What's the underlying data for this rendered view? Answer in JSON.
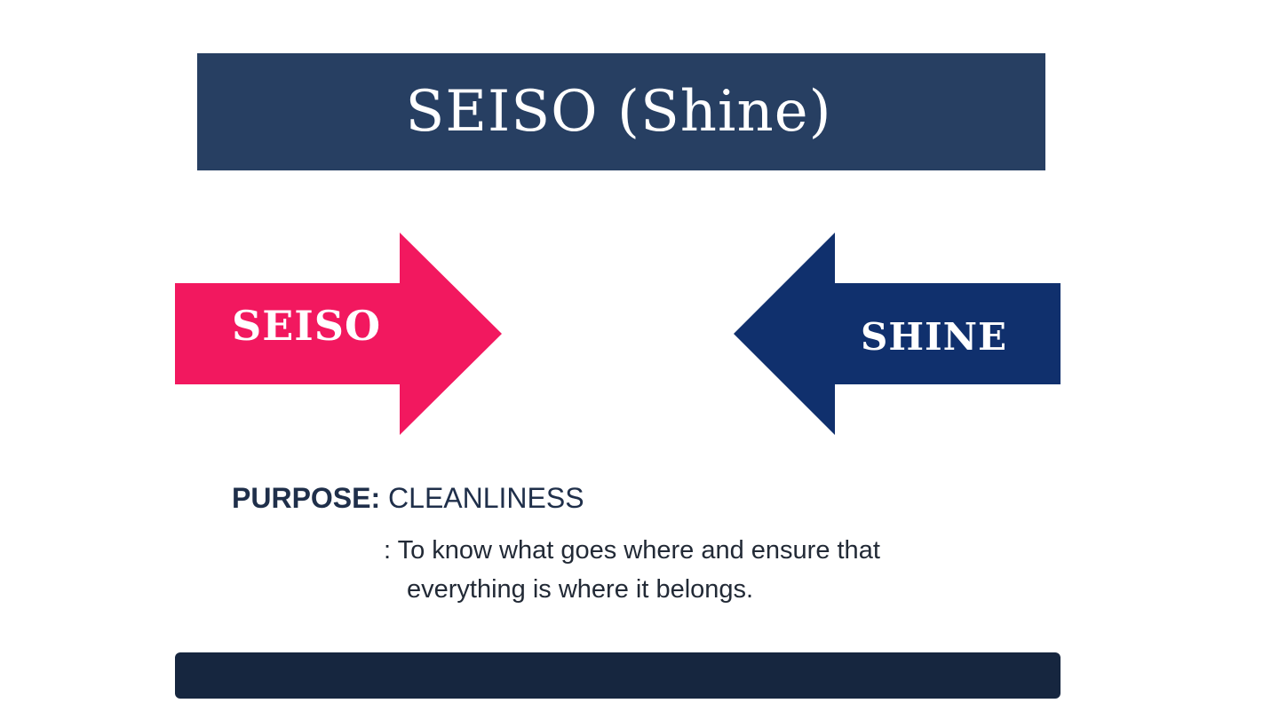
{
  "slide": {
    "title": "SEISO (Shine)",
    "arrows": {
      "left": {
        "label": "SEISO",
        "color": "#f2185f"
      },
      "right": {
        "label": "SHINE",
        "color": "#10306d"
      }
    },
    "purpose": {
      "key": "PURPOSE:",
      "value": "CLEANLINESS",
      "description_line1": ": To know what goes where and ensure that",
      "description_line2": "everything is where it belongs."
    }
  },
  "colors": {
    "title_bar": "#273f62",
    "bottom_bar": "#16263f",
    "text_dark": "#1f2f4a"
  }
}
